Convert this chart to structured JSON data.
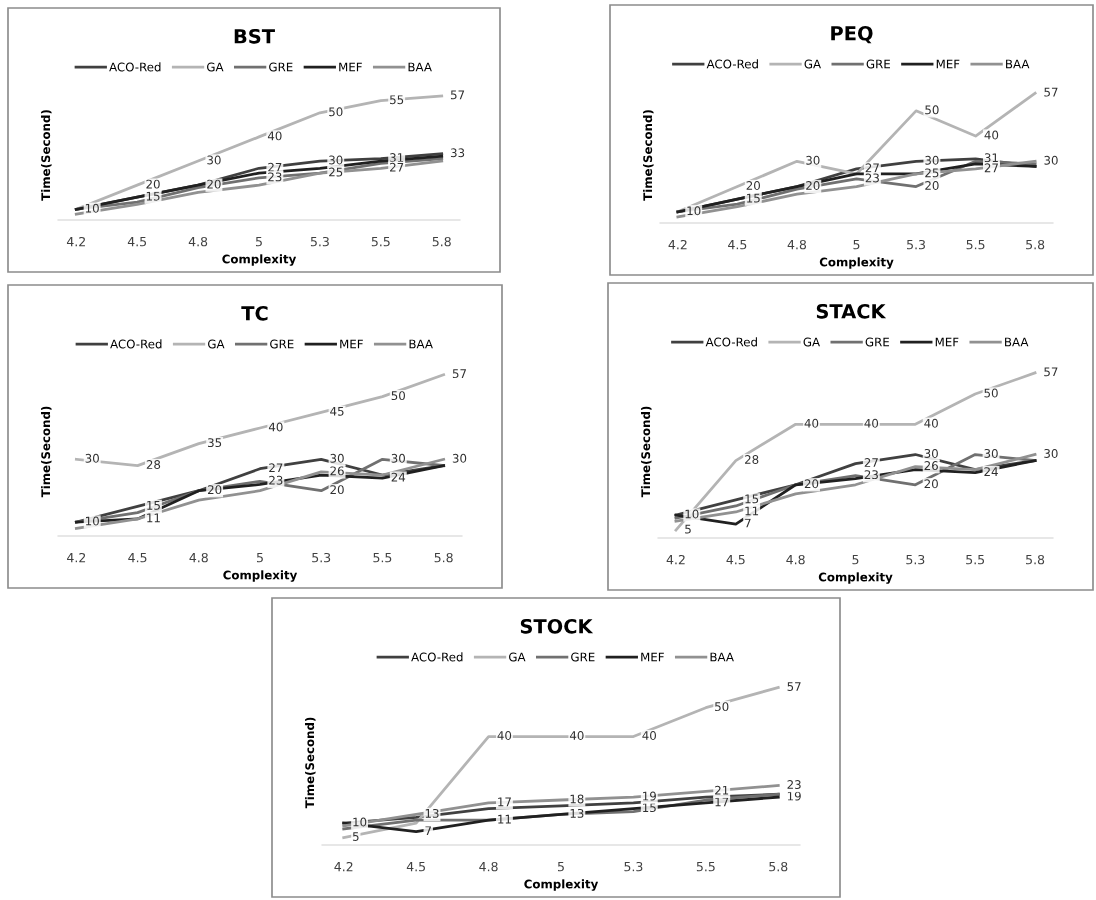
{
  "chart_data": [
    {
      "type": "line",
      "title": "BST",
      "xlabel": "Complexity",
      "ylabel": "Time(Second)",
      "categories": [
        "4.2",
        "4.5",
        "4.8",
        "5",
        "5.3",
        "5.5",
        "5.8"
      ],
      "tick_labels": "x",
      "legend": "top",
      "grid": false,
      "marker": "none",
      "series": [
        {
          "name": "ACO-Red",
          "color": "#404040",
          "values": [
            10,
            15,
            20,
            27,
            30,
            31,
            33
          ],
          "value_labels": [
            "10",
            "15",
            "20",
            "27",
            "30",
            "31",
            "33"
          ]
        },
        {
          "name": "GA",
          "color": "#b4b4b4",
          "values": [
            10,
            20,
            30,
            40,
            50,
            55,
            57
          ],
          "value_labels": [
            null,
            "20",
            "30",
            "40",
            "50",
            "55",
            "57"
          ]
        },
        {
          "name": "GRE",
          "color": "#707070",
          "values": [
            10,
            13,
            19,
            23,
            25,
            29,
            31
          ],
          "value_labels": [
            null,
            null,
            null,
            "23",
            "25",
            null,
            null
          ]
        },
        {
          "name": "MEF",
          "color": "#202020",
          "values": [
            10,
            15,
            20,
            25,
            27,
            30,
            32
          ],
          "value_labels": [
            null,
            null,
            null,
            null,
            null,
            null,
            null
          ]
        },
        {
          "name": "BAA",
          "color": "#919191",
          "values": [
            8,
            12,
            17,
            20,
            25,
            27,
            30
          ],
          "value_labels": [
            null,
            null,
            null,
            null,
            null,
            "27",
            null
          ]
        }
      ]
    },
    {
      "type": "line",
      "title": "PEQ",
      "xlabel": "Complexity",
      "ylabel": "Time(Second)",
      "categories": [
        "4.2",
        "4.5",
        "4.8",
        "5",
        "5.3",
        "5.5",
        "5.8"
      ],
      "tick_labels": "x",
      "legend": "top",
      "grid": false,
      "marker": "none",
      "series": [
        {
          "name": "ACO-Red",
          "color": "#404040",
          "values": [
            10,
            15,
            20,
            27,
            30,
            31,
            28
          ],
          "value_labels": [
            "10",
            "15",
            "20",
            "27",
            "30",
            "31",
            null
          ]
        },
        {
          "name": "GA",
          "color": "#b4b4b4",
          "values": [
            10,
            20,
            30,
            25,
            50,
            40,
            57
          ],
          "value_labels": [
            null,
            "20",
            "30",
            null,
            "50",
            "40",
            "57"
          ]
        },
        {
          "name": "GRE",
          "color": "#707070",
          "values": [
            10,
            13,
            19,
            23,
            20,
            30,
            29
          ],
          "value_labels": [
            null,
            null,
            null,
            "23",
            "20",
            null,
            null
          ]
        },
        {
          "name": "MEF",
          "color": "#202020",
          "values": [
            10,
            15,
            20,
            25,
            25,
            29,
            28
          ],
          "value_labels": [
            null,
            null,
            null,
            null,
            "25",
            null,
            null
          ]
        },
        {
          "name": "BAA",
          "color": "#919191",
          "values": [
            8,
            12,
            17,
            20,
            25,
            27,
            30
          ],
          "value_labels": [
            null,
            null,
            null,
            null,
            null,
            "27",
            "30"
          ]
        }
      ]
    },
    {
      "type": "line",
      "title": "TC",
      "xlabel": "Complexity",
      "ylabel": "Time(Second)",
      "categories": [
        "4.2",
        "4.5",
        "4.8",
        "5",
        "5.3",
        "5.5",
        "5.8"
      ],
      "tick_labels": "x",
      "legend": "top",
      "grid": false,
      "marker": "none",
      "series": [
        {
          "name": "ACO-Red",
          "color": "#404040",
          "values": [
            10,
            15,
            20,
            27,
            30,
            25,
            28
          ],
          "value_labels": [
            "10",
            "15",
            "20",
            "27",
            "30",
            null,
            null
          ]
        },
        {
          "name": "GA",
          "color": "#b4b4b4",
          "values": [
            30,
            28,
            35,
            40,
            45,
            50,
            57
          ],
          "value_labels": [
            "30",
            "28",
            "35",
            "40",
            "45",
            "50",
            "57"
          ]
        },
        {
          "name": "GRE",
          "color": "#707070",
          "values": [
            10,
            13,
            20,
            23,
            20,
            30,
            28
          ],
          "value_labels": [
            null,
            null,
            null,
            "23",
            "20",
            "30",
            null
          ]
        },
        {
          "name": "MEF",
          "color": "#202020",
          "values": [
            10,
            11,
            20,
            22,
            25,
            24,
            28
          ],
          "value_labels": [
            null,
            "11",
            null,
            null,
            null,
            "24",
            null
          ]
        },
        {
          "name": "BAA",
          "color": "#919191",
          "values": [
            8,
            11,
            17,
            20,
            26,
            25,
            30
          ],
          "value_labels": [
            null,
            null,
            null,
            null,
            "26",
            null,
            "30"
          ]
        }
      ]
    },
    {
      "type": "line",
      "title": "STACK",
      "xlabel": "Complexity",
      "ylabel": "Time(Second)",
      "categories": [
        "4.2",
        "4.5",
        "4.8",
        "5",
        "5.3",
        "5.5",
        "5.8"
      ],
      "tick_labels": "x",
      "legend": "top",
      "grid": false,
      "marker": "none",
      "series": [
        {
          "name": "ACO-Red",
          "color": "#404040",
          "values": [
            10,
            15,
            20,
            27,
            30,
            25,
            28
          ],
          "value_labels": [
            "10",
            "15",
            "20",
            "27",
            "30",
            null,
            null
          ]
        },
        {
          "name": "GA",
          "color": "#b4b4b4",
          "values": [
            5,
            28,
            40,
            40,
            40,
            50,
            57
          ],
          "value_labels": [
            "5",
            "28",
            "40",
            "40",
            "40",
            "50",
            "57"
          ]
        },
        {
          "name": "GRE",
          "color": "#707070",
          "values": [
            9,
            13,
            20,
            23,
            20,
            30,
            28
          ],
          "value_labels": [
            null,
            null,
            null,
            "23",
            "20",
            "30",
            null
          ]
        },
        {
          "name": "MEF",
          "color": "#202020",
          "values": [
            10,
            7,
            20,
            22,
            25,
            24,
            28
          ],
          "value_labels": [
            null,
            "7",
            null,
            null,
            null,
            "24",
            null
          ]
        },
        {
          "name": "BAA",
          "color": "#919191",
          "values": [
            8,
            11,
            17,
            20,
            26,
            25,
            30
          ],
          "value_labels": [
            null,
            "11",
            null,
            null,
            "26",
            null,
            "30"
          ]
        }
      ]
    },
    {
      "type": "line",
      "title": "STOCK",
      "xlabel": "Complexity",
      "ylabel": "Time(Second)",
      "categories": [
        "4.2",
        "4.5",
        "4.8",
        "5",
        "5.3",
        "5.5",
        "5.8"
      ],
      "tick_labels": "x",
      "legend": "top",
      "grid": false,
      "marker": "none",
      "series": [
        {
          "name": "ACO-Red",
          "color": "#404040",
          "values": [
            10,
            12,
            15,
            16,
            17,
            19,
            20
          ],
          "value_labels": [
            "10",
            null,
            null,
            null,
            null,
            null,
            null
          ]
        },
        {
          "name": "GA",
          "color": "#b4b4b4",
          "values": [
            5,
            10,
            40,
            40,
            40,
            50,
            57
          ],
          "value_labels": [
            "5",
            null,
            "40",
            "40",
            "40",
            "50",
            "57"
          ]
        },
        {
          "name": "GRE",
          "color": "#707070",
          "values": [
            8,
            11,
            11,
            13,
            14,
            18,
            20
          ],
          "value_labels": [
            null,
            null,
            "11",
            null,
            null,
            null,
            null
          ]
        },
        {
          "name": "MEF",
          "color": "#202020",
          "values": [
            10,
            7,
            11,
            13,
            15,
            17,
            19
          ],
          "value_labels": [
            null,
            "7",
            null,
            "13",
            "15",
            "17",
            "19"
          ]
        },
        {
          "name": "BAA",
          "color": "#919191",
          "values": [
            9,
            13,
            17,
            18,
            19,
            21,
            23
          ],
          "value_labels": [
            null,
            "13",
            "17",
            "18",
            "19",
            "21",
            "23"
          ]
        }
      ]
    }
  ]
}
